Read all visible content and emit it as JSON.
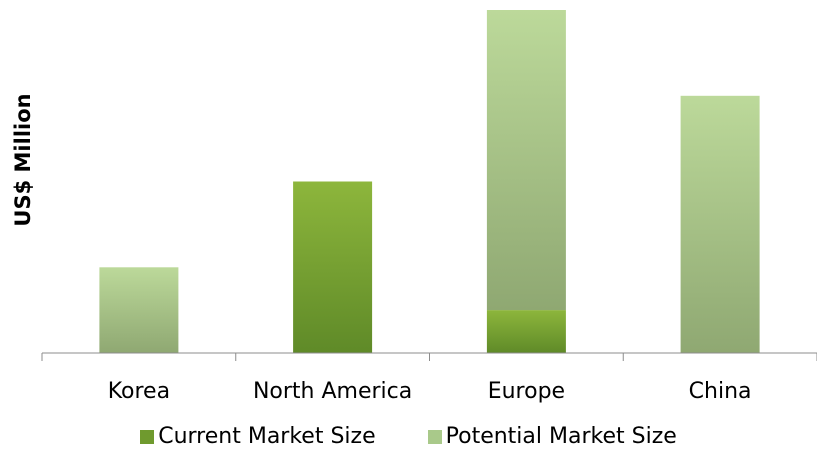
{
  "chart_data": {
    "type": "bar",
    "stacked": true,
    "categories": [
      "Korea",
      "North America",
      "Europe",
      "China"
    ],
    "series": [
      {
        "name": "Current Market Size",
        "values": [
          0,
          4,
          1,
          0
        ],
        "color": "#6f9a2e"
      },
      {
        "name": "Potential Market Size",
        "values": [
          2,
          0,
          7,
          6
        ],
        "color": "#a9c98a"
      }
    ],
    "title": "",
    "xlabel": "",
    "ylabel": "US$ Million",
    "ylim": [
      0,
      8
    ],
    "grid": false,
    "y_tick_labels": false,
    "legend": "bottom"
  }
}
